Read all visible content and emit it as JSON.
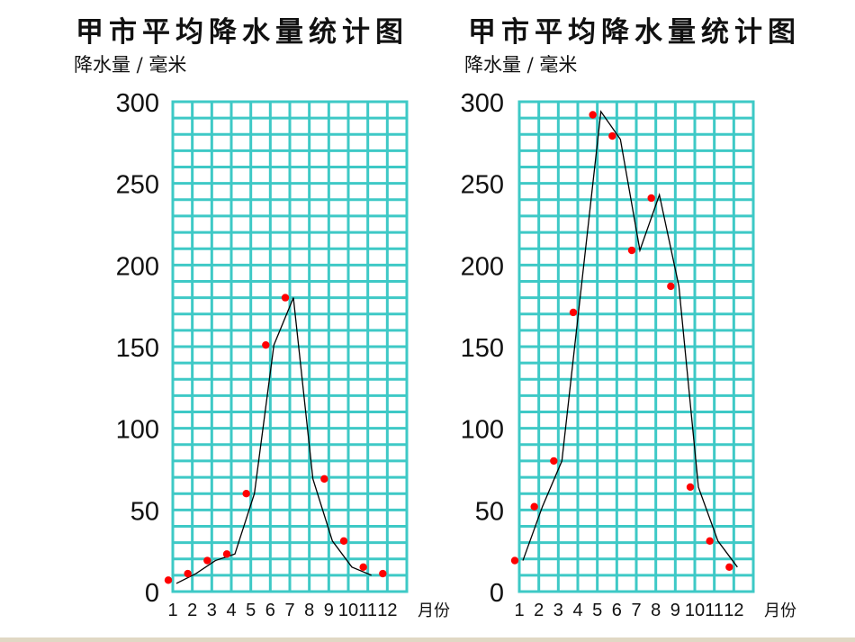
{
  "chart_data": [
    {
      "type": "line",
      "title": "甲市平均降水量统计图",
      "xlabel": "月份",
      "ylabel": "降水量 / 毫米",
      "categories": [
        "1",
        "2",
        "3",
        "4",
        "5",
        "6",
        "7",
        "8",
        "9",
        "10",
        "11",
        "12"
      ],
      "ylim": [
        0,
        300
      ],
      "yticks": [
        0,
        50,
        100,
        150,
        200,
        250,
        300
      ],
      "grid": true,
      "grid_minor_step": 10,
      "series": [
        {
          "name": "点 (dots)",
          "color": "#ff0000",
          "months": [
            1,
            2,
            3,
            4,
            5,
            6,
            7,
            9,
            10,
            11,
            12
          ],
          "values": [
            7,
            11,
            19,
            23,
            60,
            151,
            180,
            69,
            31,
            15,
            11
          ]
        },
        {
          "name": "折线 (line)",
          "color": "#000000",
          "points": [
            [
              1,
              5
            ],
            [
              2,
              11
            ],
            [
              3,
              19
            ],
            [
              4,
              23
            ],
            [
              5,
              60
            ],
            [
              6,
              151
            ],
            [
              7,
              180
            ],
            [
              8,
              69
            ],
            [
              9,
              31
            ],
            [
              10,
              15
            ],
            [
              11,
              10
            ]
          ]
        }
      ]
    },
    {
      "type": "line",
      "title": "甲市平均降水量统计图",
      "xlabel": "月份",
      "ylabel": "降水量 / 毫米",
      "categories": [
        "1",
        "2",
        "3",
        "4",
        "5",
        "6",
        "7",
        "8",
        "9",
        "10",
        "11",
        "12"
      ],
      "ylim": [
        0,
        300
      ],
      "yticks": [
        0,
        50,
        100,
        150,
        200,
        250,
        300
      ],
      "grid": true,
      "grid_minor_step": 10,
      "series": [
        {
          "name": "点 (dots)",
          "color": "#ff0000",
          "months": [
            1,
            2,
            3,
            4,
            5,
            6,
            7,
            8,
            9,
            10,
            11,
            12
          ],
          "values": [
            19,
            52,
            80,
            171,
            292,
            279,
            209,
            241,
            187,
            64,
            31,
            15
          ]
        },
        {
          "name": "折线 (line)",
          "color": "#000000",
          "points": [
            [
              1,
              19
            ],
            [
              2,
              52
            ],
            [
              3,
              80
            ],
            [
              5,
              294
            ],
            [
              6,
              277
            ],
            [
              7,
              209
            ],
            [
              8,
              243
            ],
            [
              9,
              187
            ],
            [
              10,
              64
            ],
            [
              11,
              31
            ],
            [
              12,
              15
            ]
          ]
        }
      ]
    }
  ],
  "charts": [
    {
      "title": "甲市平均降水量统计图",
      "ylabel": "降水量 / 毫米",
      "xunit": "月份"
    },
    {
      "title": "甲市平均降水量统计图",
      "ylabel": "降水量 / 毫米",
      "xunit": "月份"
    }
  ],
  "colors": {
    "grid": "#3ec9c6",
    "dot": "#ff0000",
    "line": "#000000",
    "bottom_bar": "#e0d8c4"
  }
}
